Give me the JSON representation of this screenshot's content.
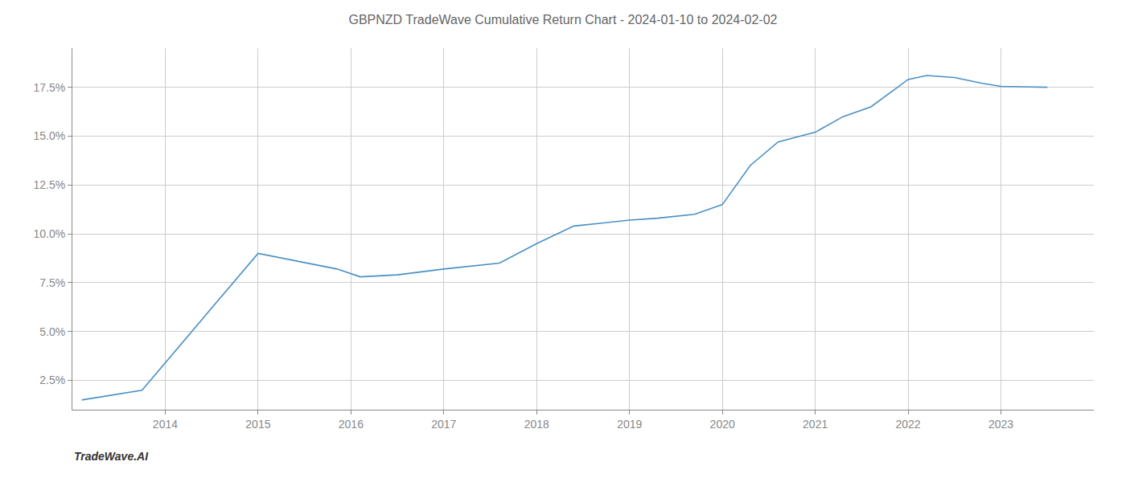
{
  "chart_data": {
    "type": "line",
    "title": "GBPNZD TradeWave Cumulative Return Chart - 2024-01-10 to 2024-02-02",
    "annotations": [
      "TradeWave.AI"
    ],
    "x": [
      2013.1,
      2013.75,
      2015.0,
      2015.85,
      2016.1,
      2016.5,
      2017.0,
      2017.3,
      2017.6,
      2018.0,
      2018.4,
      2018.7,
      2019.0,
      2019.3,
      2019.7,
      2020.0,
      2020.3,
      2020.6,
      2021.0,
      2021.3,
      2021.6,
      2022.0,
      2022.2,
      2022.5,
      2022.8,
      2023.0,
      2023.5
    ],
    "values": [
      1.5,
      2.0,
      9.0,
      8.2,
      7.8,
      7.9,
      8.2,
      8.35,
      8.5,
      9.5,
      10.4,
      10.55,
      10.7,
      10.8,
      11.0,
      11.5,
      13.5,
      14.7,
      15.2,
      16.0,
      16.5,
      17.9,
      18.1,
      18.0,
      17.7,
      17.55,
      17.5
    ],
    "color": "#4a90c4",
    "xlim": [
      2013.0,
      2024.0
    ],
    "ylim": [
      1.0,
      19.5
    ],
    "xticks": [
      2014,
      2015,
      2016,
      2017,
      2018,
      2019,
      2020,
      2021,
      2022,
      2023
    ],
    "yticks": [
      {
        "value": 2.5,
        "label": "2.5%"
      },
      {
        "value": 5.0,
        "label": "5.0%"
      },
      {
        "value": 7.5,
        "label": "7.5%"
      },
      {
        "value": 10.0,
        "label": "10.0%"
      },
      {
        "value": 12.5,
        "label": "12.5%"
      },
      {
        "value": 15.0,
        "label": "15.0%"
      },
      {
        "value": 17.5,
        "label": "17.5%"
      }
    ],
    "grid": true
  }
}
